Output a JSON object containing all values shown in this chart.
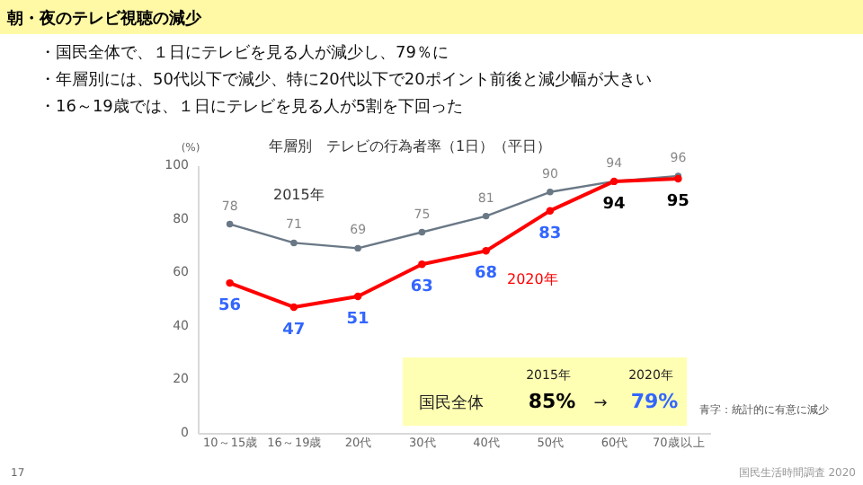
{
  "chart_data": {
    "type": "line",
    "title": "朝・夜のテレビ視聴の減少",
    "subtitle": "年層別　テレビの行為者率（1日）（平日）",
    "ylabel": "(%)",
    "categories": [
      "10～15歳",
      "16～19歳",
      "20代",
      "30代",
      "40代",
      "50代",
      "60代",
      "70歳以上"
    ],
    "series": [
      {
        "name": "2015年",
        "color": "#6a7886",
        "values": [
          78,
          71,
          69,
          75,
          81,
          90,
          94,
          96
        ]
      },
      {
        "name": "2020年",
        "color": "#ff0000",
        "values": [
          56,
          47,
          51,
          63,
          68,
          83,
          94,
          95
        ]
      }
    ],
    "ylim": [
      0,
      100
    ],
    "yticks": [
      0,
      20,
      40,
      60,
      80,
      100
    ],
    "grid": false,
    "marker": "circle",
    "line_style": "solid",
    "data_labels": true,
    "annotations": [
      "・国民全体で、１日にテレビを見る人が減少し、79％に",
      "・年層別には、50代以下で減少、特に20代以下で20ポイント前後と減少幅が大きい",
      "・16～19歳では、１日にテレビを見る人が5割を下回った",
      "2015年",
      "2020年",
      "国民全体",
      "85%",
      "→",
      "79%",
      "青字：統計的に有意に減少",
      "国民生活時間調査 2020",
      "17"
    ]
  }
}
